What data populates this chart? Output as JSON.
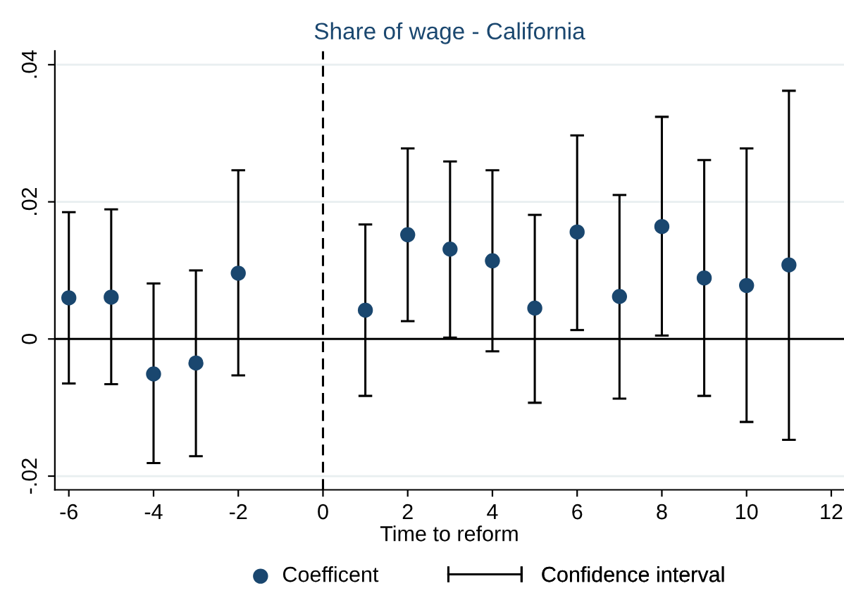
{
  "chart_data": {
    "type": "scatter",
    "title": "Share of wage - California",
    "xlabel": "Time to reform",
    "x": [
      -6,
      -5,
      -4,
      -3,
      -2,
      1,
      2,
      3,
      4,
      5,
      6,
      7,
      8,
      9,
      10,
      11
    ],
    "series": [
      {
        "name": "Coefficent",
        "color": "#1a476f",
        "values": [
          0.006,
          0.0061,
          -0.0051,
          -0.0035,
          0.0096,
          0.0042,
          0.0152,
          0.0131,
          0.0114,
          0.0045,
          0.0156,
          0.0062,
          0.0164,
          0.0089,
          0.0078,
          0.0108
        ],
        "errors": [
          [
            -0.0065,
            0.0185
          ],
          [
            -0.0066,
            0.0189
          ],
          [
            -0.0181,
            0.0081
          ],
          [
            -0.0171,
            0.01
          ],
          [
            -0.0053,
            0.0246
          ],
          [
            -0.0083,
            0.0167
          ],
          [
            0.0026,
            0.0278
          ],
          [
            0.0002,
            0.0259
          ],
          [
            -0.0018,
            0.0246
          ],
          [
            -0.0093,
            0.0181
          ],
          [
            0.0013,
            0.0297
          ],
          [
            -0.0087,
            0.021
          ],
          [
            0.0005,
            0.0324
          ],
          [
            -0.0083,
            0.0261
          ],
          [
            -0.0121,
            0.0278
          ],
          [
            -0.0147,
            0.0362
          ]
        ]
      }
    ],
    "annotations": [
      "Confidence interval"
    ],
    "xlim": [
      -6.33,
      12.3
    ],
    "ylim": [
      -0.022,
      0.042
    ],
    "xticks": [
      -6,
      -4,
      -2,
      0,
      2,
      4,
      6,
      8,
      10,
      12
    ],
    "yticks": [
      {
        "value": -0.02,
        "label": "-.02"
      },
      {
        "value": 0,
        "label": "0"
      },
      {
        "value": 0.02,
        "label": ".02"
      },
      {
        "value": 0.04,
        "label": ".04"
      }
    ],
    "ref_lines": [
      {
        "axis": "y",
        "value": 0,
        "color": "#000000",
        "line_style": "solid"
      },
      {
        "axis": "x",
        "value": 0,
        "color": "#000000",
        "line_style": "dashed"
      }
    ],
    "grid": "y",
    "legend": "bottom",
    "marker": "circle"
  }
}
